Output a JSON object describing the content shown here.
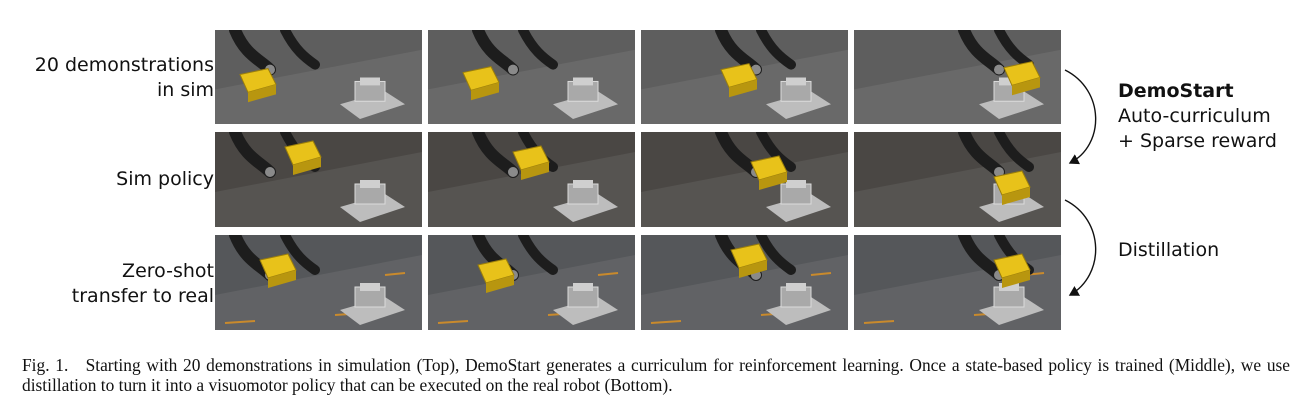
{
  "rows": [
    {
      "label_lines": [
        "20 demonstrations",
        "in sim"
      ],
      "scene": "sim"
    },
    {
      "label_lines": [
        "Sim policy"
      ],
      "scene": "policy"
    },
    {
      "label_lines": [
        "Zero-shot",
        "transfer to real"
      ],
      "scene": "real"
    }
  ],
  "right": {
    "method_name": "DemoStart",
    "method_line1": "Auto-curriculum",
    "method_line2": "+ Sparse reward",
    "distill_label": "Distillation"
  },
  "caption": {
    "label": "Fig. 1.",
    "text": "Starting with 20 demonstrations in simulation (Top), DemoStart generates a curriculum for reinforcement learning. Once a state-based policy is trained (Middle), we use distillation to turn it into a visuomotor policy that can be executed on the real robot (Bottom)."
  },
  "colors": {
    "cube": "#e8c21a",
    "sim_bg": "#5e5e5e",
    "policy_bg": "#4a4744",
    "real_bg": "#55575a",
    "robot": "#1d1d1d"
  }
}
